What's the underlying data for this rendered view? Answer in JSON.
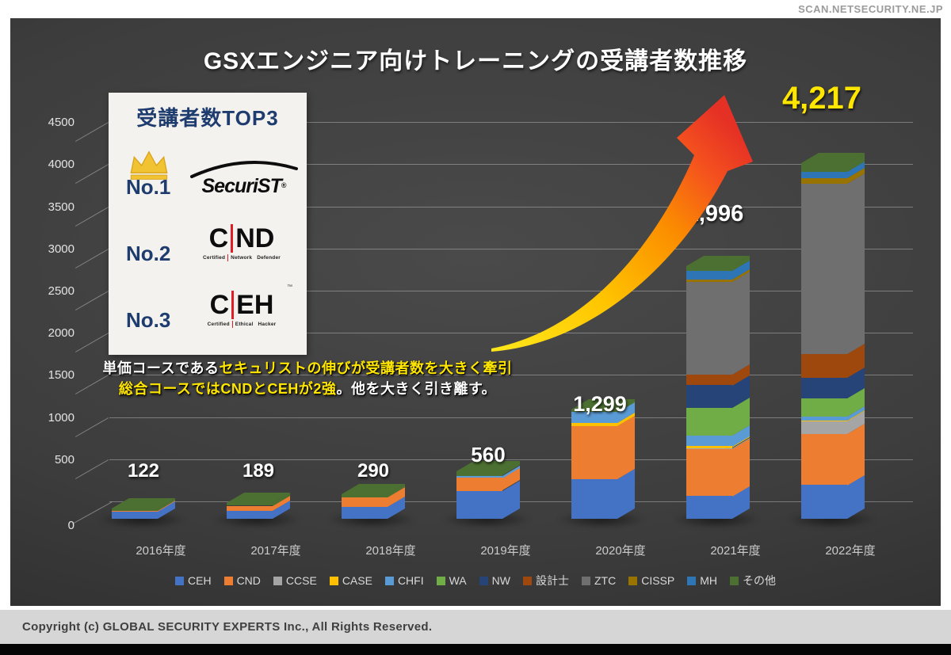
{
  "page": {
    "watermark": "SCAN.NETSECURITY.NE.JP",
    "copyright": "Copyright (c) GLOBAL SECURITY EXPERTS Inc., All Rights Reserved."
  },
  "title": "GSXエンジニア向けトレーニングの受講者数推移",
  "top3_box": {
    "heading": "受講者数TOP3",
    "ranks": [
      {
        "label": "No.1",
        "logo_text": "SecuriST",
        "reg": "®"
      },
      {
        "label": "No.2",
        "logo_left": "C",
        "logo_right": "ND",
        "sub": [
          "Certified",
          "Network",
          "Defender"
        ]
      },
      {
        "label": "No.3",
        "logo_left": "C",
        "logo_right": "EH",
        "sub": [
          "Certified",
          "Ethical",
          "Hacker"
        ],
        "tm": "™"
      }
    ]
  },
  "annotation": {
    "line1": [
      {
        "text": "単価コースである",
        "color": "#ffffff"
      },
      {
        "text": "セキュリストの伸びが受講者数を大きく牽引",
        "color": "#ffe600"
      }
    ],
    "line2": [
      {
        "text": "総合コースではCNDとCEHが2強",
        "color": "#ffe600"
      },
      {
        "text": "。他を大きく引き離す。",
        "color": "#ffffff"
      }
    ]
  },
  "chart_data": {
    "type": "bar",
    "stacked": true,
    "effect": "3d",
    "title": "GSXエンジニア向けトレーニングの受講者数推移",
    "categories": [
      "2016年度",
      "2017年度",
      "2018年度",
      "2019年度",
      "2020年度",
      "2021年度",
      "2022年度"
    ],
    "totals": [
      122,
      189,
      290,
      560,
      1299,
      2996,
      4217
    ],
    "total_labels": [
      "122",
      "189",
      "290",
      "560",
      "1,299",
      "2,996",
      "4,217"
    ],
    "highlight_label": {
      "text": "4,217",
      "color": "#ffe600"
    },
    "ylim": [
      0,
      4500
    ],
    "ytick_step": 500,
    "grid": true,
    "legend_position": "bottom",
    "series": [
      {
        "name": "CEH",
        "color": "#4472C4",
        "values": [
          90,
          95,
          140,
          330,
          470,
          270,
          400
        ]
      },
      {
        "name": "CND",
        "color": "#ED7D31",
        "values": [
          8,
          60,
          115,
          155,
          630,
          560,
          610
        ]
      },
      {
        "name": "CCSE",
        "color": "#A5A5A5",
        "values": [
          0,
          0,
          0,
          0,
          0,
          10,
          150
        ]
      },
      {
        "name": "CASE",
        "color": "#FFC000",
        "values": [
          0,
          0,
          0,
          0,
          35,
          22,
          8
        ]
      },
      {
        "name": "CHFI",
        "color": "#5B9BD5",
        "values": [
          0,
          0,
          0,
          25,
          130,
          128,
          45
        ]
      },
      {
        "name": "WA",
        "color": "#70AD47",
        "values": [
          0,
          0,
          0,
          0,
          0,
          325,
          215
        ]
      },
      {
        "name": "NW",
        "color": "#264478",
        "values": [
          0,
          0,
          0,
          0,
          0,
          270,
          245
        ]
      },
      {
        "name": "設計士",
        "color": "#9E480E",
        "values": [
          0,
          0,
          0,
          0,
          0,
          128,
          285
        ]
      },
      {
        "name": "ZTC",
        "color": "#6F6F6F",
        "values": [
          0,
          0,
          0,
          0,
          0,
          1100,
          2020
        ]
      },
      {
        "name": "CISSP",
        "color": "#997300",
        "values": [
          0,
          0,
          0,
          0,
          0,
          28,
          62
        ]
      },
      {
        "name": "MH",
        "color": "#2E75B6",
        "values": [
          0,
          0,
          0,
          0,
          0,
          100,
          77
        ]
      },
      {
        "name": "その他",
        "color": "#4C7031",
        "values": [
          24,
          34,
          35,
          50,
          34,
          55,
          100
        ]
      }
    ]
  }
}
